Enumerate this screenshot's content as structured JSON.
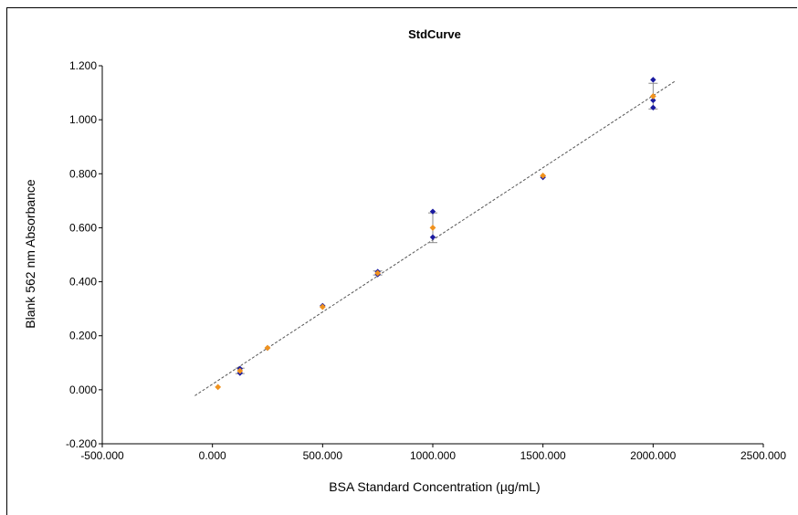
{
  "chart_data": {
    "type": "scatter",
    "title": "StdCurve",
    "xlabel": "BSA Standard Concentration (µg/mL)",
    "ylabel": "Blank 562 nm Absorbance",
    "xlim": [
      -500,
      2500
    ],
    "ylim": [
      -0.2,
      1.2
    ],
    "x_ticks": [
      "-500.000",
      "0.000",
      "500.000",
      "1000.000",
      "1500.000",
      "2000.000",
      "2500.000"
    ],
    "y_ticks": [
      "-0.200",
      "0.000",
      "0.200",
      "0.400",
      "0.600",
      "0.800",
      "1.000",
      "1.200"
    ],
    "grid": false,
    "legend": "none",
    "colors": {
      "mean": "#f0921e",
      "replicate": "#1a1aa0",
      "error_bar": "#8a8a8a",
      "trendline": "#555555"
    },
    "series": [
      {
        "x": [
          25,
          125,
          250,
          500,
          750,
          1000,
          1500,
          2000
        ],
        "values": [
          0.01,
          0.07,
          0.155,
          0.307,
          0.432,
          0.6,
          0.793,
          1.087
        ]
      },
      {
        "x": [
          125,
          125,
          250,
          500,
          750,
          750,
          1000,
          1000,
          1500,
          2000,
          2000,
          2000
        ],
        "values": [
          0.078,
          0.062,
          0.155,
          0.311,
          0.437,
          0.427,
          0.66,
          0.565,
          0.787,
          1.148,
          1.072,
          1.045
        ]
      }
    ],
    "error_bars": [
      {
        "x": 125,
        "low": 0.06,
        "high": 0.08
      },
      {
        "x": 750,
        "low": 0.425,
        "high": 0.44
      },
      {
        "x": 1000,
        "low": 0.545,
        "high": 0.655
      },
      {
        "x": 2000,
        "low": 1.04,
        "high": 1.135
      }
    ],
    "trendline": {
      "style": "dotted",
      "x": [
        -80,
        2100
      ],
      "values": [
        -0.022,
        1.143
      ]
    }
  }
}
